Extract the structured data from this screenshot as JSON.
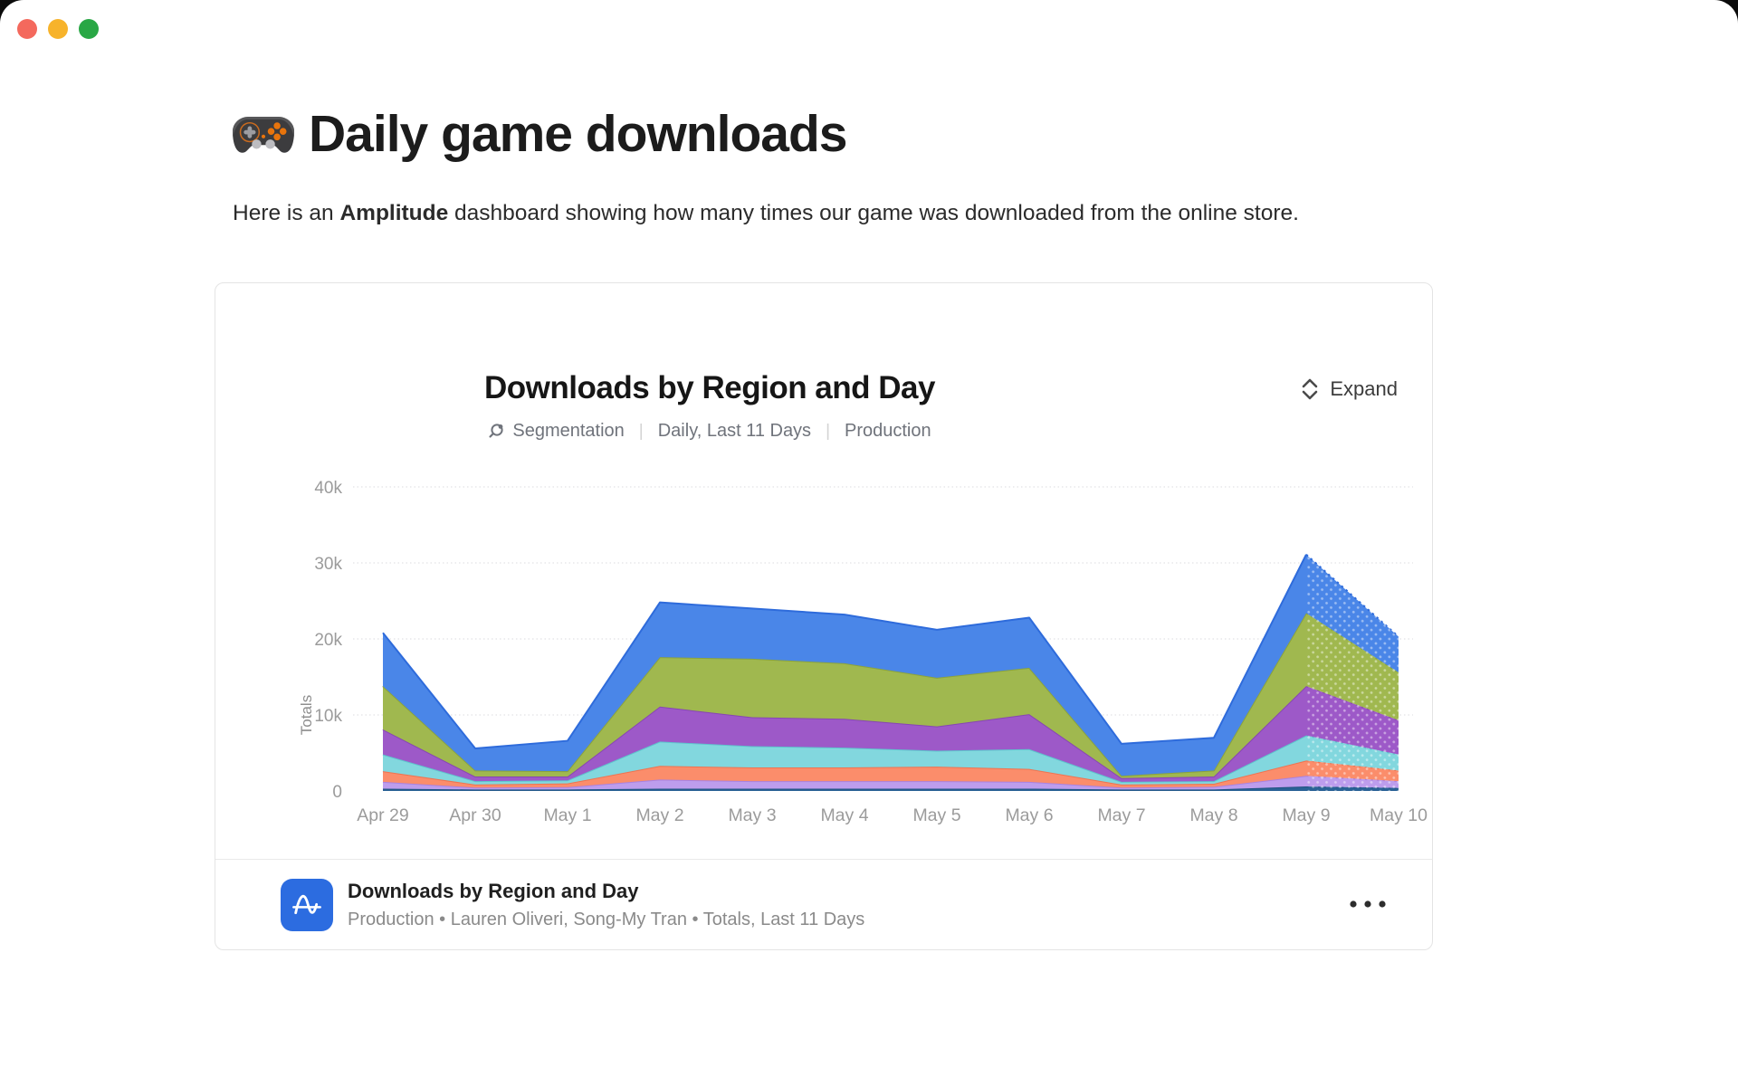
{
  "window": {
    "traffic_lights": {
      "close": "#f4695d",
      "minimize": "#f7b32b",
      "zoom": "#29a745"
    }
  },
  "page": {
    "title": "Daily game downloads",
    "intro_prefix": "Here is an ",
    "intro_bold": "Amplitude",
    "intro_suffix": " dashboard showing how many times our game was downloaded from the online store."
  },
  "chart_widget": {
    "title": "Downloads by Region and Day",
    "meta_items": [
      "Segmentation",
      "Daily, Last 11 Days",
      "Production"
    ],
    "expand_label": "Expand",
    "footer": {
      "title": "Downloads by Region and Day",
      "subtitle": "Production • Lauren Oliveri, Song-My Tran • Totals, Last 11 Days"
    }
  },
  "chart_data": {
    "type": "area",
    "stacked": true,
    "title": "Downloads by Region and Day",
    "xlabel": "",
    "ylabel": "Totals",
    "ylim": [
      0,
      40000
    ],
    "yticks": [
      0,
      10000,
      20000,
      30000,
      40000
    ],
    "ytick_labels": [
      "0",
      "10k",
      "20k",
      "30k",
      "40k"
    ],
    "grid": "horizontal-dotted",
    "legend": "none",
    "incomplete_last_segment": true,
    "categories": [
      "Apr 29",
      "Apr 30",
      "May 1",
      "May 2",
      "May 3",
      "May 4",
      "May 5",
      "May 6",
      "May 7",
      "May 8",
      "May 9",
      "May 10"
    ],
    "series": [
      {
        "name": "navy",
        "color": "#2a6296",
        "edge": "#1f527f",
        "values": [
          300,
          200,
          200,
          300,
          300,
          300,
          300,
          300,
          200,
          200,
          600,
          400
        ]
      },
      {
        "name": "lavender",
        "color": "#bd9ded",
        "edge": "#a982e0",
        "values": [
          900,
          250,
          300,
          1200,
          1000,
          1000,
          1000,
          900,
          250,
          350,
          1400,
          900
        ]
      },
      {
        "name": "orange",
        "color": "#fb8d6b",
        "edge": "#ef7350",
        "values": [
          1400,
          400,
          500,
          1800,
          1800,
          1800,
          1900,
          1700,
          400,
          400,
          2000,
          1400
        ]
      },
      {
        "name": "teal",
        "color": "#82d7de",
        "edge": "#5ec4cd",
        "values": [
          2200,
          450,
          400,
          3200,
          2800,
          2600,
          2100,
          2600,
          350,
          350,
          3300,
          2100
        ]
      },
      {
        "name": "purple",
        "color": "#9d59c8",
        "edge": "#8746b3",
        "values": [
          3300,
          600,
          500,
          4600,
          3800,
          3800,
          3200,
          4600,
          500,
          600,
          6500,
          4500
        ]
      },
      {
        "name": "green",
        "color": "#a0b84f",
        "edge": "#8ba33c",
        "values": [
          5700,
          800,
          700,
          6500,
          7700,
          7300,
          6400,
          6100,
          300,
          800,
          9600,
          6300
        ]
      },
      {
        "name": "blue",
        "color": "#4a86e8",
        "edge": "#2e6bdb",
        "values": [
          7000,
          2900,
          4000,
          7200,
          6600,
          6400,
          6300,
          6600,
          4200,
          4300,
          7700,
          4700
        ]
      }
    ],
    "totals": [
      20800,
      5600,
      6600,
      24800,
      24000,
      23200,
      21200,
      22800,
      6200,
      7000,
      31100,
      20300
    ]
  }
}
